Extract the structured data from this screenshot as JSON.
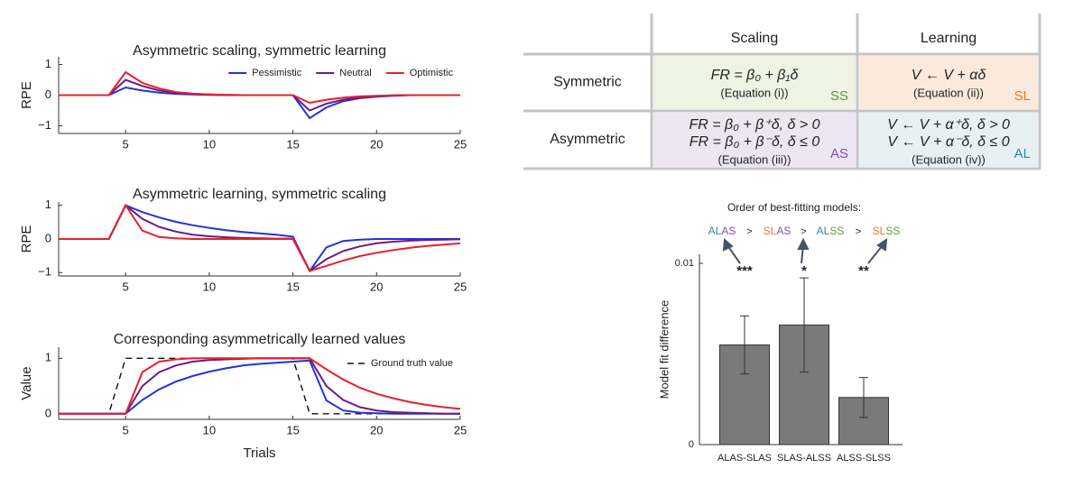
{
  "chart_data": [
    {
      "type": "line",
      "title": "Asymmetric scaling, symmetric learning",
      "ylabel": "RPE",
      "x": [
        1,
        2,
        3,
        4,
        5,
        6,
        7,
        8,
        9,
        10,
        11,
        12,
        13,
        14,
        15,
        16,
        17,
        18,
        19,
        20,
        21,
        22,
        23,
        24,
        25
      ],
      "xlim": [
        1,
        25
      ],
      "xticks": [
        5,
        10,
        15,
        20,
        25
      ],
      "ylim": [
        -1.25,
        1.25
      ],
      "yticks": [
        {
          "value": -1,
          "label": "−1"
        },
        0,
        1
      ],
      "legend": "upper right",
      "series": [
        {
          "name": "Pessimistic",
          "color": "#2233dd",
          "values": [
            0,
            0,
            0,
            0,
            0.25,
            0.15,
            0.08,
            0.04,
            0.02,
            0.01,
            0,
            0,
            0,
            0,
            0,
            -0.75,
            -0.4,
            -0.2,
            -0.1,
            -0.05,
            -0.02,
            0,
            0,
            0,
            0
          ]
        },
        {
          "name": "Neutral",
          "color": "#6a1a8a",
          "values": [
            0,
            0,
            0,
            0,
            0.5,
            0.3,
            0.15,
            0.08,
            0.04,
            0.02,
            0.01,
            0,
            0,
            0,
            0,
            -0.5,
            -0.28,
            -0.15,
            -0.07,
            -0.03,
            -0.01,
            0,
            0,
            0,
            0
          ]
        },
        {
          "name": "Optimistic",
          "color": "#e8202a",
          "values": [
            0,
            0,
            0,
            0,
            0.75,
            0.4,
            0.22,
            0.1,
            0.05,
            0.02,
            0.01,
            0,
            0,
            0,
            0,
            -0.25,
            -0.15,
            -0.08,
            -0.04,
            -0.02,
            -0.01,
            0,
            0,
            0,
            0
          ]
        }
      ]
    },
    {
      "type": "line",
      "title": "Asymmetric learning, symmetric scaling",
      "ylabel": "RPE",
      "x": [
        1,
        2,
        3,
        4,
        5,
        6,
        7,
        8,
        9,
        10,
        11,
        12,
        13,
        14,
        15,
        16,
        17,
        18,
        19,
        20,
        21,
        22,
        23,
        24,
        25
      ],
      "xlim": [
        1,
        25
      ],
      "xticks": [
        5,
        10,
        15,
        20,
        25
      ],
      "ylim": [
        -1.1,
        1.1
      ],
      "yticks": [
        {
          "value": -1,
          "label": "−1"
        },
        0,
        1
      ],
      "series": [
        {
          "color": "#2233dd",
          "values": [
            0,
            0,
            0,
            0,
            1,
            0.8,
            0.64,
            0.51,
            0.41,
            0.33,
            0.26,
            0.21,
            0.17,
            0.13,
            0.07,
            -0.95,
            -0.25,
            -0.06,
            -0.02,
            0,
            0,
            0,
            0,
            0,
            0
          ]
        },
        {
          "color": "#6a1a8a",
          "values": [
            0,
            0,
            0,
            0,
            1,
            0.6,
            0.36,
            0.22,
            0.13,
            0.08,
            0.05,
            0.03,
            0.02,
            0.01,
            0.01,
            -0.95,
            -0.6,
            -0.36,
            -0.22,
            -0.13,
            -0.08,
            -0.05,
            -0.03,
            -0.02,
            -0.01
          ]
        },
        {
          "color": "#e8202a",
          "values": [
            0,
            0,
            0,
            0,
            1,
            0.25,
            0.06,
            0.02,
            0,
            0,
            0,
            0,
            0,
            0,
            0,
            -0.95,
            -0.8,
            -0.64,
            -0.51,
            -0.41,
            -0.33,
            -0.26,
            -0.21,
            -0.17,
            -0.13
          ]
        }
      ]
    },
    {
      "type": "line",
      "title": "Corresponding asymmetrically learned values",
      "ylabel": "Value",
      "xlabel": "Trials",
      "x": [
        1,
        2,
        3,
        4,
        5,
        6,
        7,
        8,
        9,
        10,
        11,
        12,
        13,
        14,
        15,
        16,
        17,
        18,
        19,
        20,
        21,
        22,
        23,
        24,
        25
      ],
      "xlim": [
        1,
        25
      ],
      "xticks": [
        5,
        10,
        15,
        20,
        25
      ],
      "ylim": [
        -0.1,
        1.2
      ],
      "yticks": [
        0,
        1
      ],
      "legend": "upper right",
      "series": [
        {
          "name": "Ground truth value",
          "color": "#111111",
          "dash": true,
          "values": [
            0,
            0,
            0,
            0,
            1,
            1,
            1,
            1,
            1,
            1,
            1,
            1,
            1,
            1,
            1,
            0,
            0,
            0,
            0,
            0,
            0,
            0,
            0,
            0,
            0
          ]
        },
        {
          "color": "#2233dd",
          "values": [
            0,
            0,
            0,
            0,
            0,
            0.25,
            0.44,
            0.58,
            0.68,
            0.76,
            0.82,
            0.87,
            0.9,
            0.92,
            0.94,
            0.96,
            0.24,
            0.06,
            0.02,
            0.01,
            0,
            0,
            0,
            0,
            0
          ]
        },
        {
          "color": "#6a1a8a",
          "values": [
            0,
            0,
            0,
            0,
            0,
            0.5,
            0.75,
            0.87,
            0.94,
            0.97,
            0.98,
            0.99,
            1,
            1,
            1,
            1,
            0.5,
            0.25,
            0.12,
            0.06,
            0.03,
            0.02,
            0.01,
            0,
            0
          ]
        },
        {
          "color": "#e8202a",
          "values": [
            0,
            0,
            0,
            0,
            0,
            0.75,
            0.94,
            0.98,
            1,
            1,
            1,
            1,
            1,
            1,
            1,
            1,
            0.8,
            0.62,
            0.47,
            0.36,
            0.28,
            0.21,
            0.16,
            0.12,
            0.09
          ]
        }
      ]
    },
    {
      "type": "bar",
      "title": "Order of best-fitting models:",
      "order": [
        [
          "AL",
          "AS"
        ],
        [
          "SL",
          "AS"
        ],
        [
          "AL",
          "SS"
        ],
        [
          "SL",
          "SS"
        ]
      ],
      "order_separator": ">",
      "ylabel": "Model fit difference",
      "categories": [
        "ALAS-SLAS",
        "SLAS-ALSS",
        "ALSS-SLSS"
      ],
      "values": [
        0.0055,
        0.0066,
        0.0026
      ],
      "errors": [
        0.0016,
        0.0026,
        0.0011
      ],
      "significance": [
        "***",
        "*",
        "**"
      ],
      "color": "#7a7a7a",
      "ylim": [
        0,
        0.0105
      ],
      "yticks": [
        0,
        0.01
      ]
    }
  ],
  "code_colors": {
    "SS": "#5c9a35",
    "SL": "#e07b2a",
    "AS": "#7b52ab",
    "AL": "#2f86a8"
  },
  "table": {
    "columns": [
      "Scaling",
      "Learning"
    ],
    "rows": [
      {
        "label": "Symmetric",
        "cells": [
          {
            "lines": [
              "FR = β₀ + β₁δ"
            ],
            "note": "(Equation (i))",
            "tag": "SS",
            "background": "#eef3e4"
          },
          {
            "lines": [
              "V ← V + αδ"
            ],
            "note": "(Equation (ii))",
            "tag": "SL",
            "background": "#fbeadc"
          }
        ]
      },
      {
        "label": "Asymmetric",
        "cells": [
          {
            "lines": [
              "FR = β₀ + β⁺δ, δ > 0",
              "FR = β₀ + β⁻δ, δ ≤ 0"
            ],
            "note": "(Equation (iii))",
            "tag": "AS",
            "background": "#ece6f2"
          },
          {
            "lines": [
              "V ← V + α⁺δ, δ > 0",
              "V ← V + α⁻δ, δ ≤ 0"
            ],
            "note": "(Equation (iv))",
            "tag": "AL",
            "background": "#e7f1f5"
          }
        ]
      }
    ]
  }
}
